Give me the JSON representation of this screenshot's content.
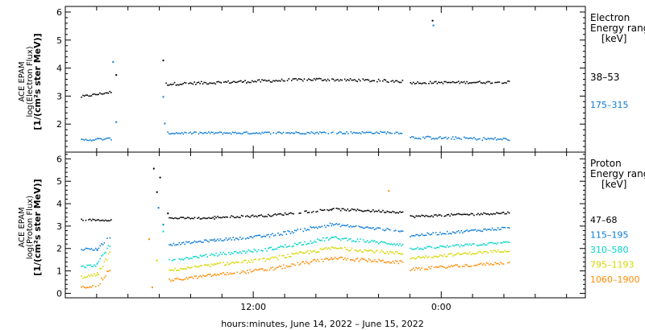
{
  "chart_data": [
    {
      "type": "scatter",
      "panel": "electron",
      "ylabel": [
        "ACE EPAM",
        "log(Electron Flux)",
        "[1/(cm²s ster MeV)]"
      ],
      "ylim": [
        1.0,
        6.2
      ],
      "yticks": [
        2,
        3,
        4,
        5,
        6
      ],
      "legend_title": [
        "Electron",
        "Energy ranges",
        "[keV]"
      ],
      "legend_placement": "right",
      "series": [
        {
          "name": "38–53",
          "color": "#000000",
          "segments": [
            {
              "x": [
                0.0,
                1.95
              ],
              "y": [
                3.0,
                3.17
              ],
              "jitter": 0.04
            },
            {
              "x": [
                5.4,
                15.0
              ],
              "y": [
                3.45,
                3.62
              ],
              "jitter": 0.05
            },
            {
              "x": [
                15.0,
                20.5
              ],
              "y": [
                3.62,
                3.55
              ],
              "jitter": 0.05
            },
            {
              "x": [
                21.0,
                27.3
              ],
              "y": [
                3.5,
                3.52
              ],
              "jitter": 0.04
            }
          ],
          "points": [
            [
              2.2,
              3.78
            ],
            [
              5.2,
              4.3
            ],
            [
              22.4,
              5.72
            ]
          ]
        },
        {
          "name": "175–315",
          "color": "#0a7bd6",
          "segments": [
            {
              "x": [
                0.0,
                1.95
              ],
              "y": [
                1.45,
                1.5
              ],
              "jitter": 0.04
            },
            {
              "x": [
                5.5,
                20.5
              ],
              "y": [
                1.7,
                1.72
              ],
              "jitter": 0.04
            },
            {
              "x": [
                21.0,
                27.3
              ],
              "y": [
                1.55,
                1.48
              ],
              "jitter": 0.05
            }
          ],
          "points": [
            [
              2.0,
              4.25
            ],
            [
              2.2,
              2.1
            ],
            [
              5.3,
              2.05
            ],
            [
              5.2,
              3.0
            ],
            [
              22.45,
              5.55
            ]
          ]
        }
      ]
    },
    {
      "type": "scatter",
      "panel": "proton",
      "ylabel": [
        "ACE EPAM",
        "log(Proton Flux)",
        "[1/(cm²s ster MeV)]"
      ],
      "ylim": [
        -0.2,
        6.3
      ],
      "yticks": [
        0,
        1,
        2,
        3,
        4,
        5,
        6
      ],
      "legend_title": [
        "Proton",
        "Energy ranges",
        "[keV]"
      ],
      "legend_placement": "right",
      "xlabel": "hours:minutes, June 14, 2022 – June 15, 2022",
      "xlim": [
        -1.0,
        32.2
      ],
      "xticks": [
        {
          "value": 11.0,
          "label": "12:00"
        },
        {
          "value": 23.0,
          "label": "0:00"
        }
      ],
      "xminor_step": 2,
      "series": [
        {
          "name": "47–68",
          "color": "#000000",
          "segments": [
            {
              "x": [
                0.0,
                1.9
              ],
              "y": [
                3.3,
                3.3
              ],
              "jitter": 0.04
            },
            {
              "x": [
                5.6,
                8.5
              ],
              "y": [
                3.38,
                3.38
              ],
              "jitter": 0.04
            },
            {
              "x": [
                8.5,
                12.0
              ],
              "y": [
                3.42,
                3.5
              ],
              "jitter": 0.05
            },
            {
              "x": [
                12.0,
                16.0
              ],
              "y": [
                3.5,
                3.78
              ],
              "jitter": 0.05
            },
            {
              "x": [
                16.0,
                20.5
              ],
              "y": [
                3.78,
                3.65
              ],
              "jitter": 0.05
            },
            {
              "x": [
                21.0,
                27.3
              ],
              "y": [
                3.45,
                3.62
              ],
              "jitter": 0.05
            }
          ],
          "points": [
            [
              4.6,
              5.6
            ],
            [
              5.0,
              5.2
            ],
            [
              4.8,
              4.55
            ],
            [
              5.5,
              3.6
            ]
          ]
        },
        {
          "name": "115–195",
          "color": "#0a7bd6",
          "segments": [
            {
              "x": [
                0.0,
                1.0
              ],
              "y": [
                2.0,
                2.0
              ],
              "jitter": 0.05
            },
            {
              "x": [
                1.0,
                1.9
              ],
              "y": [
                2.0,
                2.6
              ],
              "jitter": 0.08
            },
            {
              "x": [
                5.6,
                8.5
              ],
              "y": [
                2.2,
                2.4
              ],
              "jitter": 0.05
            },
            {
              "x": [
                8.5,
                12.0
              ],
              "y": [
                2.4,
                2.6
              ],
              "jitter": 0.06
            },
            {
              "x": [
                12.0,
                16.0
              ],
              "y": [
                2.6,
                3.1
              ],
              "jitter": 0.08
            },
            {
              "x": [
                16.0,
                20.5
              ],
              "y": [
                3.1,
                2.8
              ],
              "jitter": 0.06
            },
            {
              "x": [
                21.0,
                27.3
              ],
              "y": [
                2.6,
                2.95
              ],
              "jitter": 0.06
            }
          ],
          "points": [
            [
              4.9,
              3.85
            ],
            [
              5.2,
              3.1
            ]
          ]
        },
        {
          "name": "310–580",
          "color": "#00d6c8",
          "segments": [
            {
              "x": [
                0.0,
                1.0
              ],
              "y": [
                1.2,
                1.3
              ],
              "jitter": 0.06
            },
            {
              "x": [
                1.0,
                1.9
              ],
              "y": [
                1.3,
                2.3
              ],
              "jitter": 0.1
            },
            {
              "x": [
                5.6,
                8.5
              ],
              "y": [
                1.5,
                1.75
              ],
              "jitter": 0.06
            },
            {
              "x": [
                8.5,
                12.0
              ],
              "y": [
                1.75,
                2.0
              ],
              "jitter": 0.07
            },
            {
              "x": [
                12.0,
                16.0
              ],
              "y": [
                2.0,
                2.5
              ],
              "jitter": 0.08
            },
            {
              "x": [
                16.0,
                20.5
              ],
              "y": [
                2.5,
                2.2
              ],
              "jitter": 0.07
            },
            {
              "x": [
                21.0,
                27.3
              ],
              "y": [
                2.0,
                2.3
              ],
              "jitter": 0.06
            }
          ],
          "points": [
            [
              5.2,
              2.8
            ]
          ]
        },
        {
          "name": "795–1193",
          "color": "#d6d600",
          "segments": [
            {
              "x": [
                0.0,
                1.0
              ],
              "y": [
                0.75,
                0.85
              ],
              "jitter": 0.06
            },
            {
              "x": [
                1.0,
                1.9
              ],
              "y": [
                0.85,
                1.9
              ],
              "jitter": 0.1
            },
            {
              "x": [
                5.6,
                8.5
              ],
              "y": [
                1.05,
                1.3
              ],
              "jitter": 0.06
            },
            {
              "x": [
                8.5,
                12.0
              ],
              "y": [
                1.3,
                1.55
              ],
              "jitter": 0.07
            },
            {
              "x": [
                12.0,
                16.0
              ],
              "y": [
                1.55,
                2.05
              ],
              "jitter": 0.08
            },
            {
              "x": [
                16.0,
                20.5
              ],
              "y": [
                2.05,
                1.8
              ],
              "jitter": 0.07
            },
            {
              "x": [
                21.0,
                27.3
              ],
              "y": [
                1.6,
                1.95
              ],
              "jitter": 0.06
            }
          ],
          "points": [
            [
              4.8,
              1.5
            ]
          ]
        },
        {
          "name": "1060–1900",
          "color": "#ff8a00",
          "segments": [
            {
              "x": [
                0.0,
                1.0
              ],
              "y": [
                0.3,
                0.35
              ],
              "jitter": 0.05
            },
            {
              "x": [
                1.0,
                1.9
              ],
              "y": [
                0.35,
                1.2
              ],
              "jitter": 0.1
            },
            {
              "x": [
                5.6,
                8.5
              ],
              "y": [
                0.6,
                0.85
              ],
              "jitter": 0.06
            },
            {
              "x": [
                8.5,
                12.0
              ],
              "y": [
                0.85,
                1.1
              ],
              "jitter": 0.07
            },
            {
              "x": [
                12.0,
                16.0
              ],
              "y": [
                1.1,
                1.6
              ],
              "jitter": 0.08
            },
            {
              "x": [
                16.0,
                20.5
              ],
              "y": [
                1.6,
                1.4
              ],
              "jitter": 0.07
            },
            {
              "x": [
                21.0,
                27.3
              ],
              "y": [
                1.1,
                1.4
              ],
              "jitter": 0.06
            }
          ],
          "points": [
            [
              4.3,
              2.45
            ],
            [
              4.5,
              0.3
            ],
            [
              19.6,
              4.6
            ]
          ]
        }
      ]
    }
  ]
}
